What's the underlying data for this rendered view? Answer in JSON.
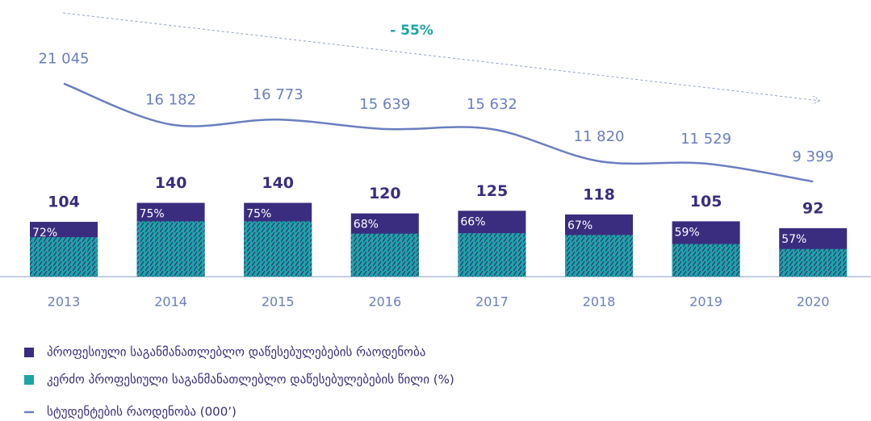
{
  "chart_data": {
    "type": "bar-line",
    "categories": [
      "2013",
      "2014",
      "2015",
      "2016",
      "2017",
      "2018",
      "2019",
      "2020"
    ],
    "annotation": "- 55%",
    "ylim": [
      0,
      525
    ],
    "y2lim": [
      0,
      31000
    ],
    "series": [
      {
        "name": "პროფესიული საგანმანათლებლო დაწესებულებების რაოდენობა",
        "color": "#3a2d7f",
        "values": [
          104,
          140,
          140,
          120,
          125,
          118,
          105,
          92
        ]
      },
      {
        "name": "კერძო პროფესიული საგანმანათლებლო დაწესებულებების წილი (%)",
        "color": "#1ba5a5",
        "values": [
          72,
          75,
          75,
          68,
          66,
          67,
          59,
          57
        ],
        "value_labels": [
          "72%",
          "75%",
          "75%",
          "68%",
          "66%",
          "67%",
          "59%",
          "57%"
        ]
      },
      {
        "name": "სტუდენტების რაოდენობა (000’)",
        "color": "#6a7ec0",
        "axis": "y2",
        "values": [
          21045,
          16182,
          16773,
          15639,
          15632,
          11820,
          11529,
          9399
        ],
        "value_labels": [
          "21 045",
          "16 182",
          "16 773",
          "15 639",
          "15 632",
          "11 820",
          "11 529",
          "9 399"
        ]
      }
    ]
  }
}
